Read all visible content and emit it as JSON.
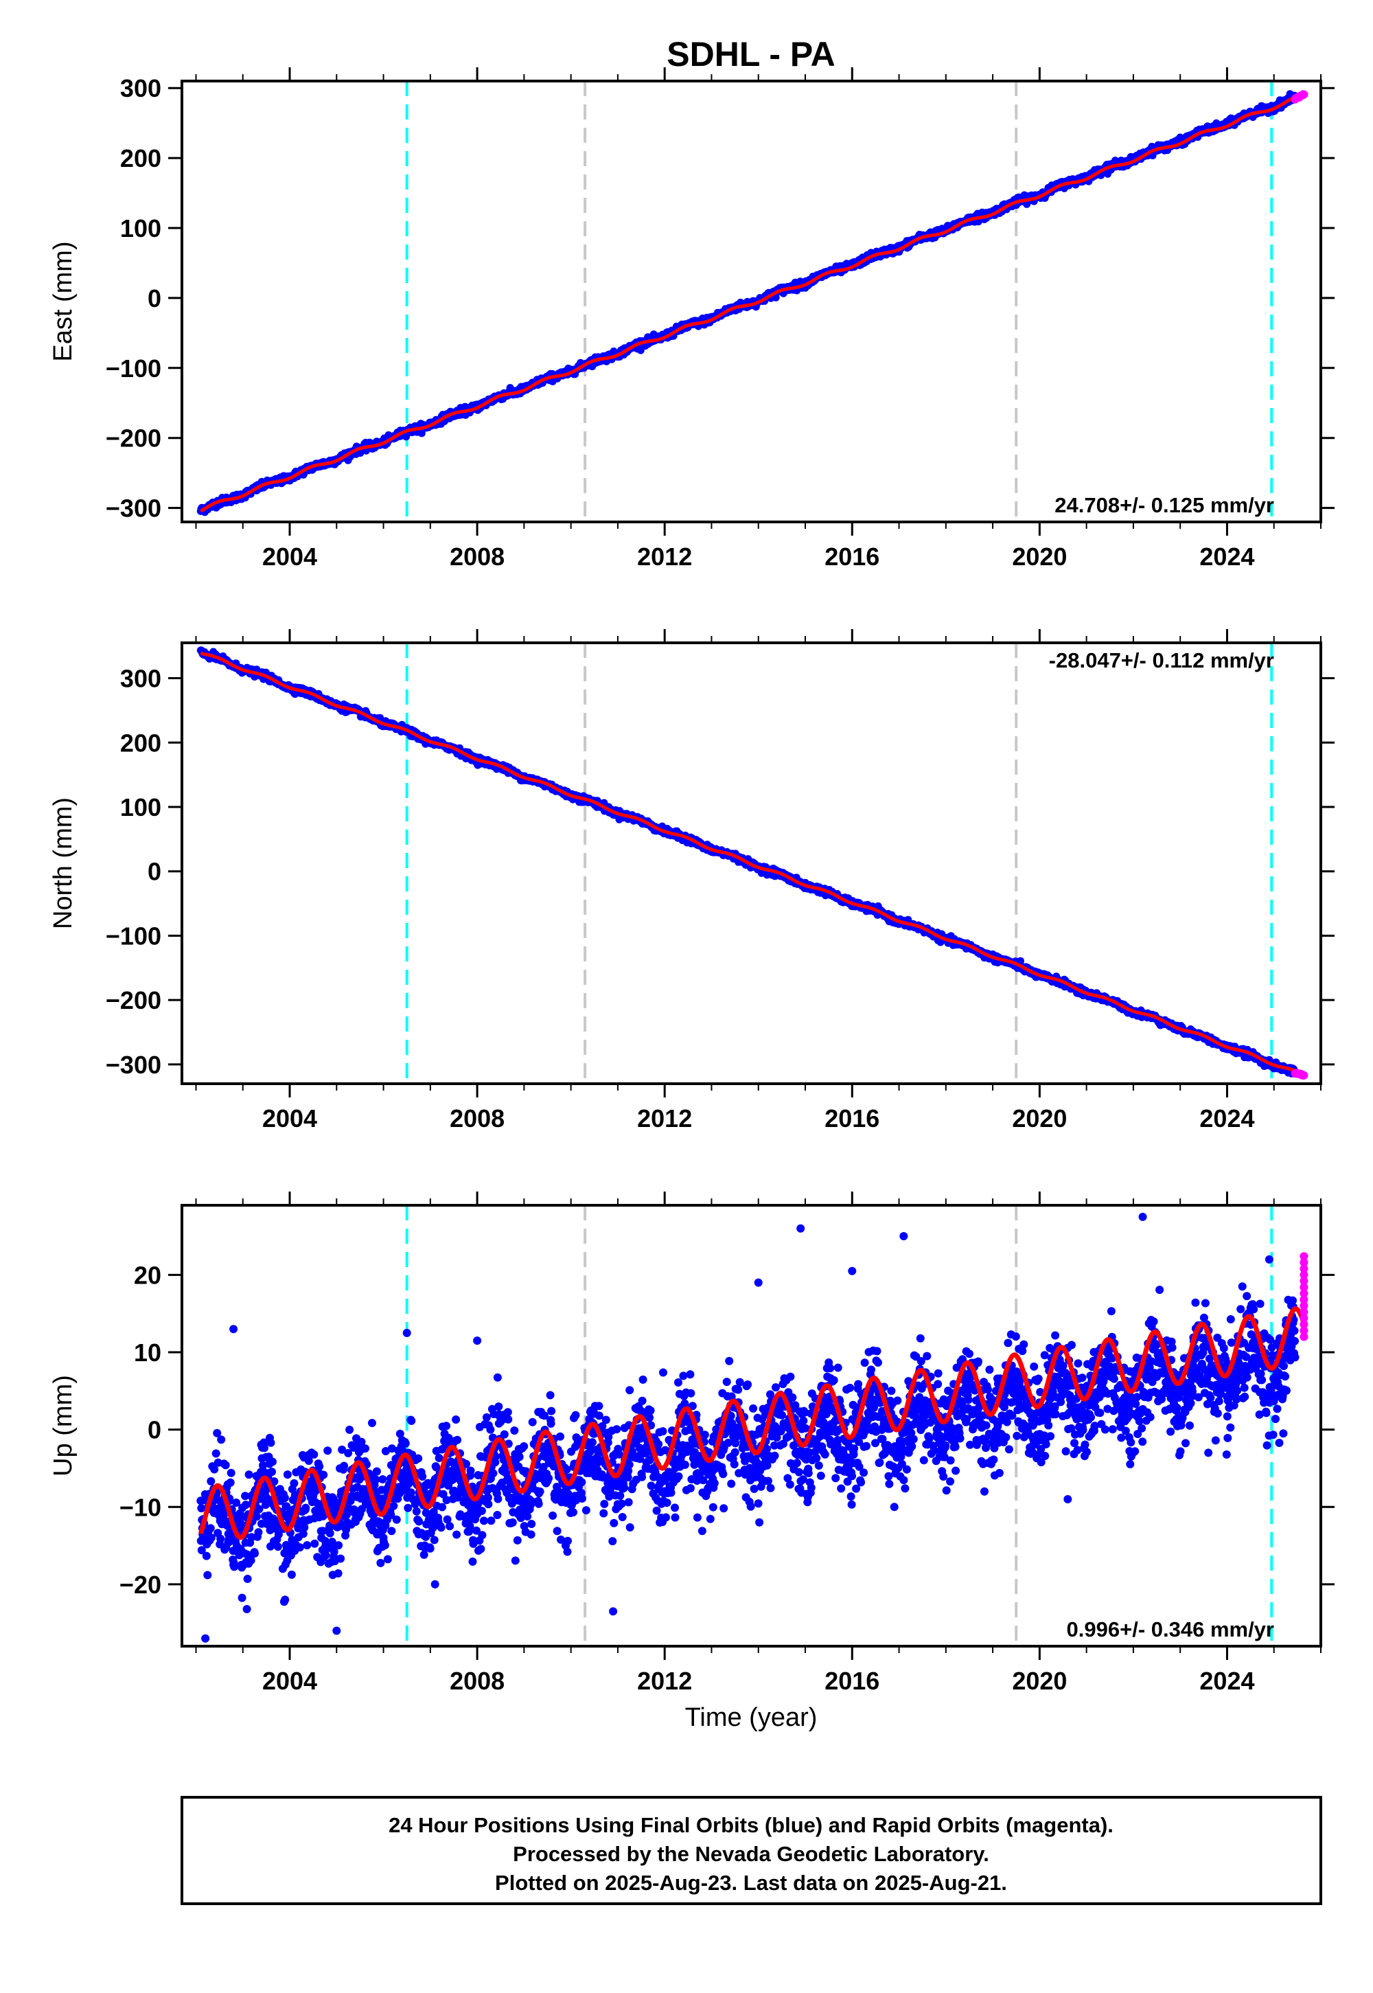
{
  "page": {
    "title": "SDHL - PA"
  },
  "colors": {
    "final_orbits": "#0000ff",
    "rapid_orbits": "#ff00ff",
    "model_fit": "#ff0000",
    "antenna_change_line": "#00ffff",
    "equipment_change_line": "#c8c8c8",
    "frame": "#000000"
  },
  "chart_data": [
    {
      "type": "scatter",
      "name": "east",
      "ylabel": "East (mm)",
      "xlabel": "",
      "xlim": [
        2001.7,
        2026.0
      ],
      "ylim": [
        -320,
        310
      ],
      "xticks": [
        2004,
        2008,
        2012,
        2016,
        2020,
        2024
      ],
      "xtick_labels": [
        "2004",
        "2008",
        "2012",
        "2016",
        "2020",
        "2024"
      ],
      "yticks": [
        -300,
        -200,
        -100,
        0,
        100,
        200,
        300
      ],
      "ytick_labels": [
        "−300",
        "−200",
        "−100",
        "0",
        "100",
        "200",
        "300"
      ],
      "rate_label": "24.708+/- 0.125 mm/yr",
      "rate_position": "bottom-right",
      "series": [
        {
          "role": "final",
          "x_start": 2002.1,
          "x_end": 2025.45,
          "y_start": -303,
          "y_end": 286,
          "scatter": 2.5,
          "outliers": []
        },
        {
          "role": "rapid",
          "x_start": 2025.45,
          "x_end": 2025.64,
          "y_start": 284,
          "y_end": 291,
          "scatter": 2.5
        },
        {
          "role": "model",
          "x_start": 2002.1,
          "x_end": 2025.64,
          "y_start": -303,
          "y_end": 289,
          "seasonal_amplitude": 2.5
        }
      ],
      "vertical_lines": [
        {
          "x": 2006.5,
          "kind": "antenna"
        },
        {
          "x": 2010.3,
          "kind": "equipment"
        },
        {
          "x": 2019.5,
          "kind": "equipment"
        },
        {
          "x": 2024.95,
          "kind": "antenna"
        }
      ]
    },
    {
      "type": "scatter",
      "name": "north",
      "ylabel": "North (mm)",
      "xlabel": "",
      "xlim": [
        2001.7,
        2026.0
      ],
      "ylim": [
        -330,
        355
      ],
      "xticks": [
        2004,
        2008,
        2012,
        2016,
        2020,
        2024
      ],
      "xtick_labels": [
        "2004",
        "2008",
        "2012",
        "2016",
        "2020",
        "2024"
      ],
      "yticks": [
        -300,
        -200,
        -100,
        0,
        100,
        200,
        300
      ],
      "ytick_labels": [
        "−300",
        "−200",
        "−100",
        "0",
        "100",
        "200",
        "300"
      ],
      "rate_label": "-28.047+/- 0.112 mm/yr",
      "rate_position": "top-right",
      "series": [
        {
          "role": "final",
          "x_start": 2002.1,
          "x_end": 2025.45,
          "y_start": 340,
          "y_end": -313,
          "scatter": 2.5,
          "outliers": []
        },
        {
          "role": "rapid",
          "x_start": 2025.45,
          "x_end": 2025.64,
          "y_start": -313,
          "y_end": -317,
          "scatter": 2.0
        },
        {
          "role": "model",
          "x_start": 2002.1,
          "x_end": 2025.64,
          "y_start": 340,
          "y_end": -317,
          "seasonal_amplitude": 2.0
        }
      ],
      "vertical_lines": [
        {
          "x": 2006.5,
          "kind": "antenna"
        },
        {
          "x": 2010.3,
          "kind": "equipment"
        },
        {
          "x": 2019.5,
          "kind": "equipment"
        },
        {
          "x": 2024.95,
          "kind": "antenna"
        }
      ]
    },
    {
      "type": "scatter",
      "name": "up",
      "ylabel": "Up (mm)",
      "xlabel": "Time (year)",
      "xlim": [
        2001.7,
        2026.0
      ],
      "ylim": [
        -28,
        29
      ],
      "xticks": [
        2004,
        2008,
        2012,
        2016,
        2020,
        2024
      ],
      "xtick_labels": [
        "2004",
        "2008",
        "2012",
        "2016",
        "2020",
        "2024"
      ],
      "yticks": [
        -20,
        -10,
        0,
        10,
        20
      ],
      "ytick_labels": [
        "−20",
        "−10",
        "0",
        "10",
        "20"
      ],
      "rate_label": "0.996+/- 0.346 mm/yr",
      "rate_position": "bottom-right",
      "series": [
        {
          "role": "final",
          "x_start": 2002.1,
          "x_end": 2025.45,
          "y_start": -12,
          "y_end": 8.5,
          "scatter": 3.2,
          "outliers": [
            [
              2002.2,
              -27
            ],
            [
              2002.8,
              13
            ],
            [
              2006.5,
              12.5
            ],
            [
              2008.0,
              11.5
            ],
            [
              2014.0,
              19
            ],
            [
              2014.9,
              26
            ],
            [
              2016.0,
              20.5
            ],
            [
              2017.1,
              25
            ],
            [
              2022.2,
              27.5
            ],
            [
              2024.9,
              22
            ],
            [
              2010.9,
              -23.5
            ],
            [
              2005.0,
              -26
            ],
            [
              2003.9,
              -22
            ],
            [
              2007.1,
              -20
            ],
            [
              2016.9,
              -10
            ],
            [
              2020.6,
              -9
            ],
            [
              2023.6,
              -3
            ],
            [
              2025.2,
              -0.5
            ]
          ]
        },
        {
          "role": "rapid",
          "x_start": 2025.45,
          "x_end": 2025.64,
          "y_start": 12,
          "y_end": 22,
          "scatter": 3.0
        },
        {
          "role": "model",
          "x_start": 2002.1,
          "x_end": 2025.64,
          "y_start": -11.2,
          "y_end": 12.2,
          "seasonal_amplitude": 3.6
        }
      ],
      "vertical_lines": [
        {
          "x": 2006.5,
          "kind": "antenna"
        },
        {
          "x": 2010.3,
          "kind": "equipment"
        },
        {
          "x": 2019.5,
          "kind": "equipment"
        },
        {
          "x": 2024.95,
          "kind": "antenna"
        }
      ]
    }
  ],
  "footer": {
    "line1": "24 Hour Positions Using Final Orbits (blue) and Rapid Orbits (magenta).",
    "line2": "Processed by the Nevada Geodetic Laboratory.",
    "line3": "Plotted on 2025-Aug-23. Last data on 2025-Aug-21."
  }
}
